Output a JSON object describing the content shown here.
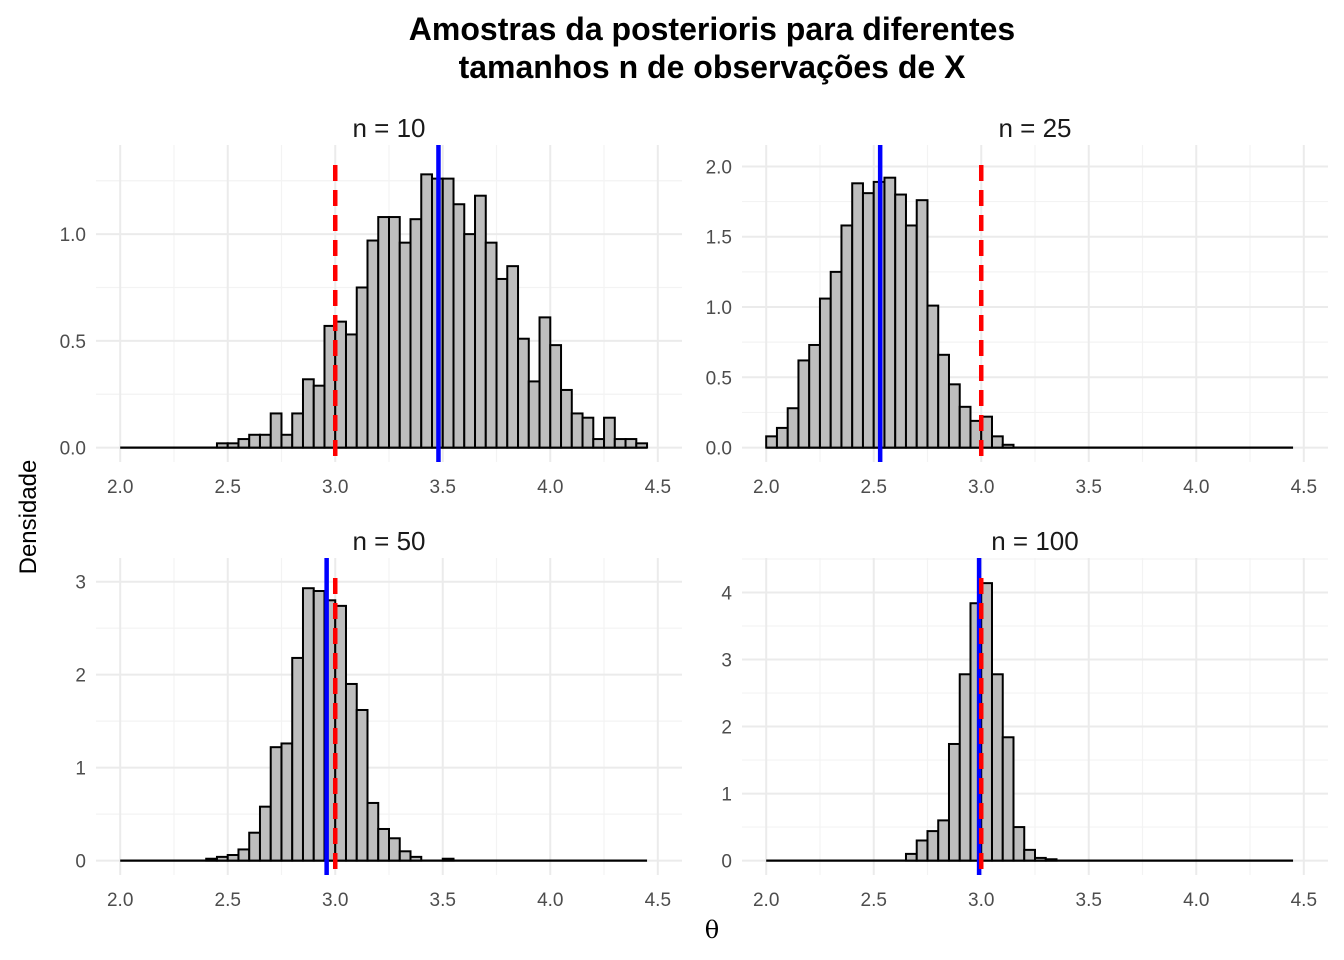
{
  "title_line1": "Amostras da posterioris para diferentes",
  "title_line2": "tamanhos n de observações de X",
  "xlabel": "θ",
  "ylabel": "Densidade",
  "colors": {
    "bar_fill": "#bebebe",
    "bar_stroke": "#000000",
    "mean_line": "#0000ff",
    "true_line": "#ff0000",
    "grid_major": "#ebebeb",
    "grid_minor": "#f3f3f3"
  },
  "chart_data": [
    {
      "type": "bar",
      "panel": "n = 10",
      "bin_width": 0.05,
      "bin_starts": [
        2.45,
        2.5,
        2.55,
        2.6,
        2.65,
        2.7,
        2.75,
        2.8,
        2.85,
        2.9,
        2.95,
        3.0,
        3.05,
        3.1,
        3.15,
        3.2,
        3.25,
        3.3,
        3.35,
        3.4,
        3.45,
        3.5,
        3.55,
        3.6,
        3.65,
        3.7,
        3.75,
        3.8,
        3.85,
        3.9,
        3.95,
        4.0,
        4.05,
        4.1,
        4.15,
        4.2,
        4.25,
        4.3,
        4.35,
        4.4
      ],
      "values": [
        0.02,
        0.02,
        0.04,
        0.06,
        0.06,
        0.16,
        0.06,
        0.16,
        0.32,
        0.29,
        0.57,
        0.59,
        0.53,
        0.75,
        0.97,
        1.08,
        1.08,
        0.96,
        1.07,
        1.28,
        1.26,
        1.26,
        1.14,
        1.0,
        1.18,
        0.96,
        0.79,
        0.85,
        0.51,
        0.31,
        0.61,
        0.48,
        0.27,
        0.16,
        0.14,
        0.04,
        0.14,
        0.04,
        0.04,
        0.02
      ],
      "mean_line": 3.48,
      "true_line": 3.0,
      "xlim": [
        2.0,
        4.5
      ],
      "xticks": [
        "2.0",
        "2.5",
        "3.0",
        "3.5",
        "4.0",
        "4.5"
      ],
      "ylim": [
        0,
        1.35
      ],
      "yticks": [
        "0.0",
        "0.5",
        "1.0"
      ],
      "ytick_values": [
        0,
        0.5,
        1.0
      ]
    },
    {
      "type": "bar",
      "panel": "n = 25",
      "bin_width": 0.05,
      "bin_starts": [
        2.0,
        2.05,
        2.1,
        2.15,
        2.2,
        2.25,
        2.3,
        2.35,
        2.4,
        2.45,
        2.5,
        2.55,
        2.6,
        2.65,
        2.7,
        2.75,
        2.8,
        2.85,
        2.9,
        2.95,
        3.0,
        3.05,
        3.1
      ],
      "values": [
        0.08,
        0.14,
        0.28,
        0.62,
        0.73,
        1.06,
        1.25,
        1.58,
        1.88,
        1.81,
        1.89,
        1.92,
        1.8,
        1.58,
        1.76,
        1.01,
        0.66,
        0.45,
        0.29,
        0.19,
        0.22,
        0.08,
        0.02
      ],
      "mean_line": 2.53,
      "true_line": 3.0,
      "xlim": [
        2.0,
        4.5
      ],
      "xticks": [
        "2.0",
        "2.5",
        "3.0",
        "3.5",
        "4.0",
        "4.5"
      ],
      "ylim": [
        0,
        2.05
      ],
      "yticks": [
        "0.0",
        "0.5",
        "1.0",
        "1.5",
        "2.0"
      ],
      "ytick_values": [
        0,
        0.5,
        1.0,
        1.5,
        2.0
      ]
    },
    {
      "type": "bar",
      "panel": "n = 50",
      "bin_width": 0.05,
      "bin_starts": [
        2.4,
        2.45,
        2.5,
        2.55,
        2.6,
        2.65,
        2.7,
        2.75,
        2.8,
        2.85,
        2.9,
        2.95,
        3.0,
        3.05,
        3.1,
        3.15,
        3.2,
        3.25,
        3.3,
        3.35,
        3.5
      ],
      "values": [
        0.02,
        0.04,
        0.06,
        0.12,
        0.3,
        0.58,
        1.22,
        1.26,
        2.18,
        2.93,
        2.9,
        2.8,
        2.74,
        1.9,
        1.62,
        0.62,
        0.34,
        0.24,
        0.1,
        0.04,
        0.02
      ],
      "mean_line": 2.96,
      "true_line": 3.0,
      "xlim": [
        2.0,
        4.5
      ],
      "xticks": [
        "2.0",
        "2.5",
        "3.0",
        "3.5",
        "4.0",
        "4.5"
      ],
      "ylim": [
        0,
        3.1
      ],
      "yticks": [
        "0",
        "1",
        "2",
        "3"
      ],
      "ytick_values": [
        0,
        1,
        2,
        3
      ]
    },
    {
      "type": "bar",
      "panel": "n = 100",
      "bin_width": 0.05,
      "bin_starts": [
        2.65,
        2.7,
        2.75,
        2.8,
        2.85,
        2.9,
        2.95,
        3.0,
        3.05,
        3.1,
        3.15,
        3.2,
        3.25,
        3.3
      ],
      "values": [
        0.1,
        0.3,
        0.44,
        0.6,
        1.74,
        2.78,
        3.84,
        4.14,
        2.78,
        1.84,
        0.5,
        0.16,
        0.04,
        0.02
      ],
      "mean_line": 2.99,
      "true_line": 3.0,
      "xlim": [
        2.0,
        4.5
      ],
      "xticks": [
        "2.0",
        "2.5",
        "3.0",
        "3.5",
        "4.0",
        "4.5"
      ],
      "ylim": [
        0,
        4.3
      ],
      "yticks": [
        "0",
        "1",
        "2",
        "3",
        "4"
      ],
      "ytick_values": [
        0,
        1,
        2,
        3,
        4
      ]
    }
  ]
}
